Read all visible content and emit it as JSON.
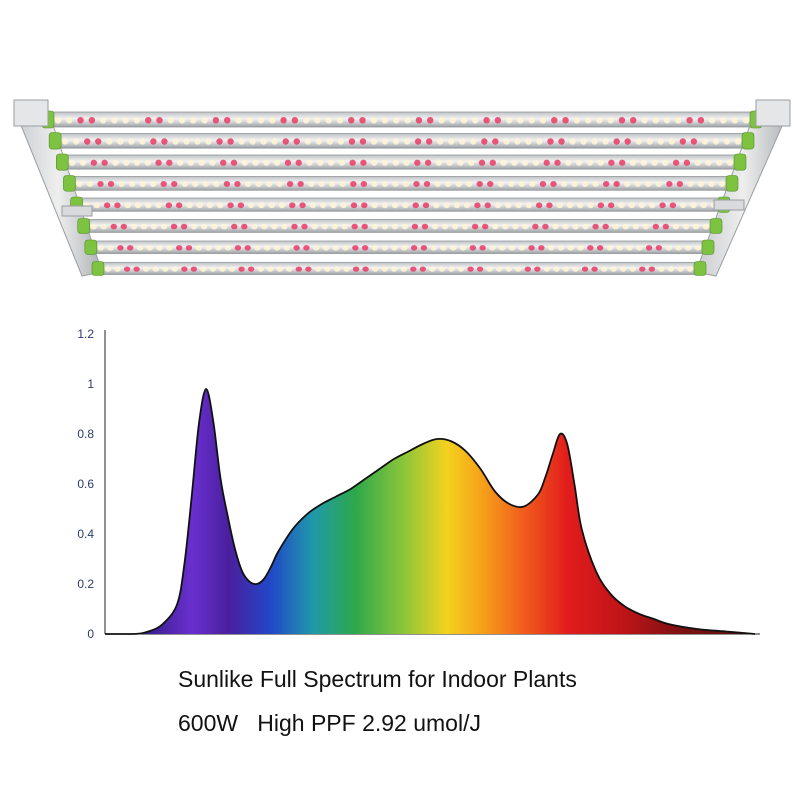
{
  "caption": {
    "line1": "Sunlike Full Spectrum for Indoor Plants",
    "line2": "600W   High PPF 2.92 umol/J"
  },
  "product": {
    "bar_count": 8,
    "colors": {
      "frame": "#d9d9d9",
      "end_cap": "#7ec242",
      "led_white": "#fff4d8",
      "led_red": "#e8456b"
    }
  },
  "chart_data": {
    "type": "area",
    "title": "",
    "xlabel": "",
    "ylabel": "",
    "ylim": [
      0,
      1.2
    ],
    "yticks": [
      "0",
      "0.2",
      "0.4",
      "0.6",
      "0.8",
      "1",
      "1.2"
    ],
    "x_range": [
      350,
      800
    ],
    "grid": false,
    "fill": "spectral gradient (violet → blue → green → yellow → orange → red → dark red)",
    "series": [
      {
        "x": [
          350,
          370,
          380,
          390,
          400,
          405,
          410,
          415,
          420,
          425,
          430,
          435,
          440,
          445,
          450,
          455,
          460,
          465,
          470,
          480,
          490,
          500,
          510,
          520,
          530,
          540,
          550,
          560,
          570,
          580,
          590,
          600,
          610,
          620,
          630,
          640,
          650,
          655,
          660,
          665,
          670,
          675,
          680,
          690,
          700,
          710,
          720,
          730,
          740,
          760,
          780,
          800
        ],
        "values": [
          0,
          0,
          0.01,
          0.04,
          0.12,
          0.28,
          0.55,
          0.84,
          0.98,
          0.85,
          0.62,
          0.47,
          0.34,
          0.25,
          0.21,
          0.2,
          0.22,
          0.27,
          0.33,
          0.42,
          0.48,
          0.52,
          0.55,
          0.58,
          0.62,
          0.66,
          0.7,
          0.73,
          0.76,
          0.78,
          0.77,
          0.73,
          0.66,
          0.57,
          0.52,
          0.51,
          0.56,
          0.63,
          0.72,
          0.8,
          0.76,
          0.6,
          0.42,
          0.25,
          0.16,
          0.11,
          0.08,
          0.06,
          0.04,
          0.02,
          0.01,
          0
        ]
      }
    ]
  }
}
